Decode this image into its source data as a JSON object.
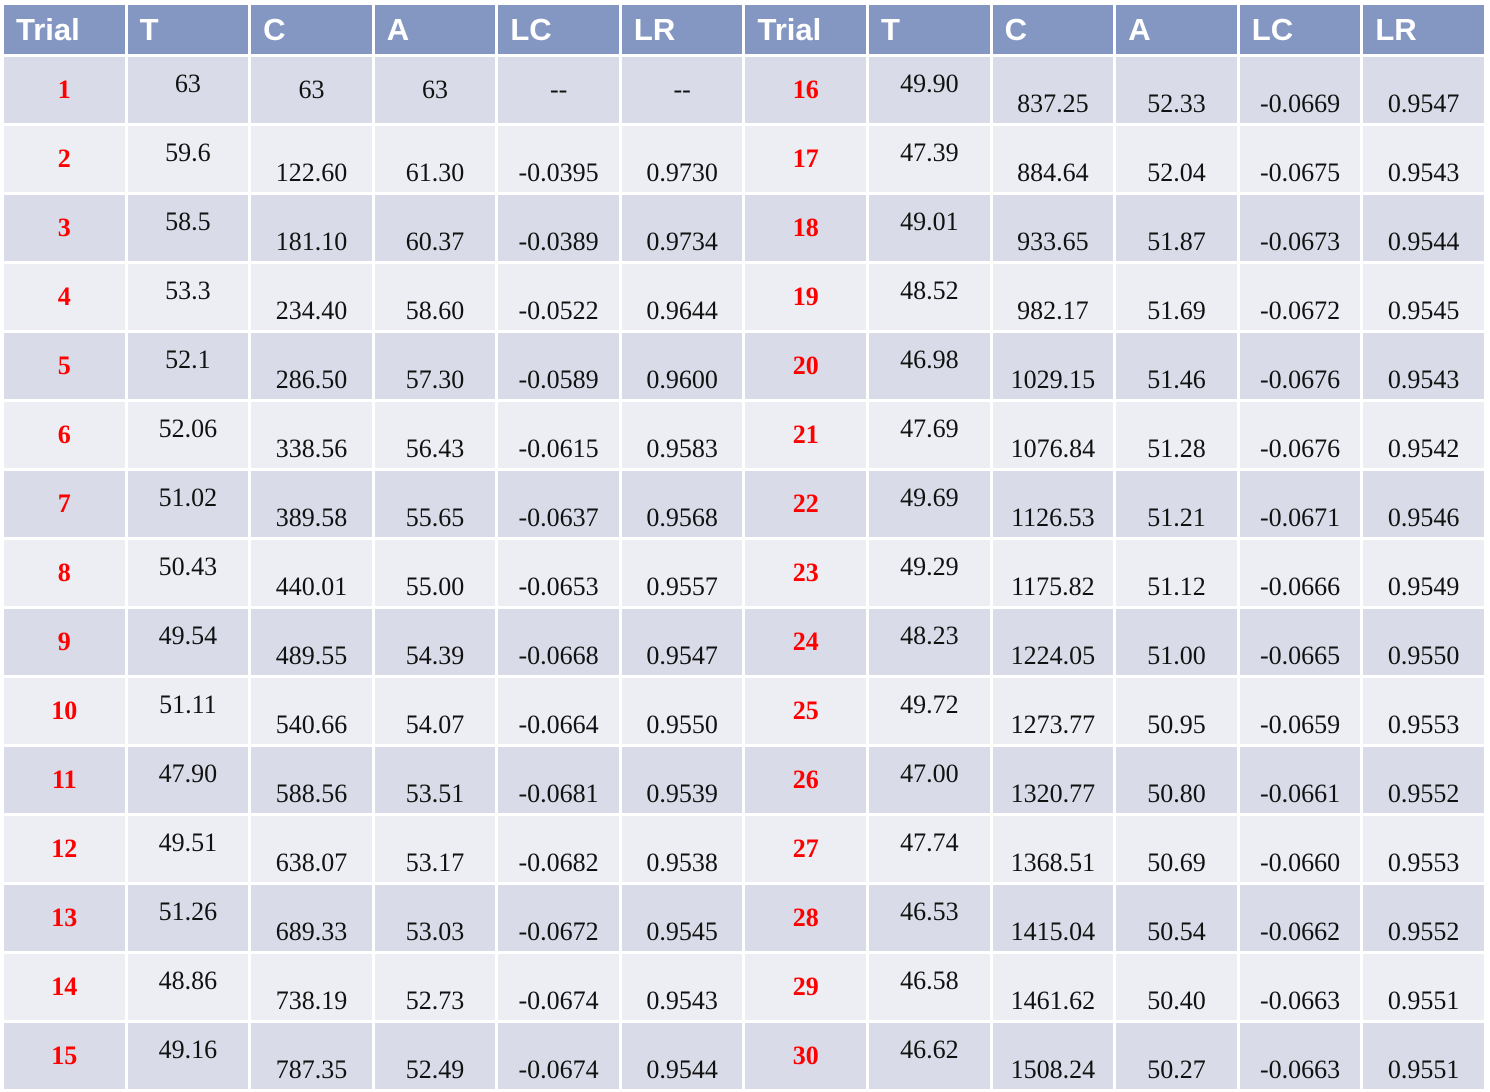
{
  "columns": [
    "Trial",
    "T",
    "C",
    "A",
    "LC",
    "LR",
    "Trial",
    "T",
    "C",
    "A",
    "LC",
    "LR"
  ],
  "rows": [
    [
      [
        "1",
        "63",
        "63",
        "63",
        "--",
        "--"
      ],
      [
        "16",
        "49.90",
        "837.25",
        "52.33",
        "-0.0669",
        "0.9547"
      ]
    ],
    [
      [
        "2",
        "59.6",
        "122.60",
        "61.30",
        "-0.0395",
        "0.9730"
      ],
      [
        "17",
        "47.39",
        "884.64",
        "52.04",
        "-0.0675",
        "0.9543"
      ]
    ],
    [
      [
        "3",
        "58.5",
        "181.10",
        "60.37",
        "-0.0389",
        "0.9734"
      ],
      [
        "18",
        "49.01",
        "933.65",
        "51.87",
        "-0.0673",
        "0.9544"
      ]
    ],
    [
      [
        "4",
        "53.3",
        "234.40",
        "58.60",
        "-0.0522",
        "0.9644"
      ],
      [
        "19",
        "48.52",
        "982.17",
        "51.69",
        "-0.0672",
        "0.9545"
      ]
    ],
    [
      [
        "5",
        "52.1",
        "286.50",
        "57.30",
        "-0.0589",
        "0.9600"
      ],
      [
        "20",
        "46.98",
        "1029.15",
        "51.46",
        "-0.0676",
        "0.9543"
      ]
    ],
    [
      [
        "6",
        "52.06",
        "338.56",
        "56.43",
        "-0.0615",
        "0.9583"
      ],
      [
        "21",
        "47.69",
        "1076.84",
        "51.28",
        "-0.0676",
        "0.9542"
      ]
    ],
    [
      [
        "7",
        "51.02",
        "389.58",
        "55.65",
        "-0.0637",
        "0.9568"
      ],
      [
        "22",
        "49.69",
        "1126.53",
        "51.21",
        "-0.0671",
        "0.9546"
      ]
    ],
    [
      [
        "8",
        "50.43",
        "440.01",
        "55.00",
        "-0.0653",
        "0.9557"
      ],
      [
        "23",
        "49.29",
        "1175.82",
        "51.12",
        "-0.0666",
        "0.9549"
      ]
    ],
    [
      [
        "9",
        "49.54",
        "489.55",
        "54.39",
        "-0.0668",
        "0.9547"
      ],
      [
        "24",
        "48.23",
        "1224.05",
        "51.00",
        "-0.0665",
        "0.9550"
      ]
    ],
    [
      [
        "10",
        "51.11",
        "540.66",
        "54.07",
        "-0.0664",
        "0.9550"
      ],
      [
        "25",
        "49.72",
        "1273.77",
        "50.95",
        "-0.0659",
        "0.9553"
      ]
    ],
    [
      [
        "11",
        "47.90",
        "588.56",
        "53.51",
        "-0.0681",
        "0.9539"
      ],
      [
        "26",
        "47.00",
        "1320.77",
        "50.80",
        "-0.0661",
        "0.9552"
      ]
    ],
    [
      [
        "12",
        "49.51",
        "638.07",
        "53.17",
        "-0.0682",
        "0.9538"
      ],
      [
        "27",
        "47.74",
        "1368.51",
        "50.69",
        "-0.0660",
        "0.9553"
      ]
    ],
    [
      [
        "13",
        "51.26",
        "689.33",
        "53.03",
        "-0.0672",
        "0.9545"
      ],
      [
        "28",
        "46.53",
        "1415.04",
        "50.54",
        "-0.0662",
        "0.9552"
      ]
    ],
    [
      [
        "14",
        "48.86",
        "738.19",
        "52.73",
        "-0.0674",
        "0.9543"
      ],
      [
        "29",
        "46.58",
        "1461.62",
        "50.40",
        "-0.0663",
        "0.9551"
      ]
    ],
    [
      [
        "15",
        "49.16",
        "787.35",
        "52.49",
        "-0.0674",
        "0.9544"
      ],
      [
        "30",
        "46.62",
        "1508.24",
        "50.27",
        "-0.0663",
        "0.9551"
      ]
    ]
  ],
  "colors": {
    "header_bg": "#8497c3",
    "header_text": "#ffffff",
    "row_dark": "#d9dce8",
    "row_light": "#eceef4",
    "trial_text": "#ff0000",
    "cell_text": "#111111"
  }
}
